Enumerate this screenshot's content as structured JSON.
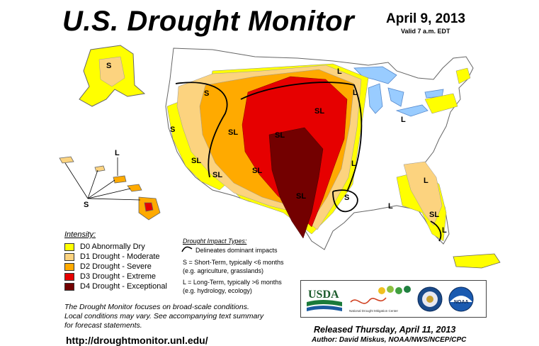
{
  "header": {
    "title": "U.S. Drought Monitor",
    "date": "April 9, 2013",
    "valid": "Valid 7 a.m. EDT"
  },
  "legend": {
    "heading": "Intensity:",
    "items": [
      {
        "label": "D0 Abnormally Dry",
        "color": "#ffff00"
      },
      {
        "label": "D1 Drought - Moderate",
        "color": "#fcd37f"
      },
      {
        "label": "D2 Drought - Severe",
        "color": "#ffaa00"
      },
      {
        "label": "D3 Drought - Extreme",
        "color": "#e60000"
      },
      {
        "label": "D4 Drought - Exceptional",
        "color": "#730000"
      }
    ]
  },
  "impact": {
    "heading": "Drought Impact Types:",
    "line_desc": "Delineates dominant impacts",
    "short_1": "S = Short-Term, typically <6 months",
    "short_2": "(e.g. agriculture, grasslands)",
    "long_1": "L = Long-Term, typically >6 months",
    "long_2": "(e.g. hydrology, ecology)"
  },
  "note": {
    "line1": "The Drought Monitor focuses on broad-scale conditions.",
    "line2": "Local conditions may vary. See accompanying text summary",
    "line3": "for forecast statements."
  },
  "url": "http://droughtmonitor.unl.edu/",
  "logos": {
    "usda": "USDA",
    "ndmc": "National Drought Mitigation Center",
    "noaa": "NOAA"
  },
  "footer": {
    "released": "Released Thursday, April 11, 2013",
    "author": "Author: David Miskus, NOAA/NWS/NCEP/CPC"
  },
  "map_labels": {
    "ak_s": "S",
    "nw_s": "S",
    "ca_s": "S",
    "nv_sl": "SL",
    "co_sl": "SL",
    "ne_sl": "SL",
    "ia_sl": "SL",
    "az_sl": "SL",
    "nm_sl": "SL",
    "tx_sl": "SL",
    "tx_s": "S",
    "mn_l": "L",
    "ks_l": "L",
    "oh_l": "L",
    "mo_l": "L",
    "ga_l": "L",
    "fl_sl": "SL",
    "fl_l": "L",
    "se_l": "L",
    "hi_l": "L",
    "hi_s": "S"
  }
}
